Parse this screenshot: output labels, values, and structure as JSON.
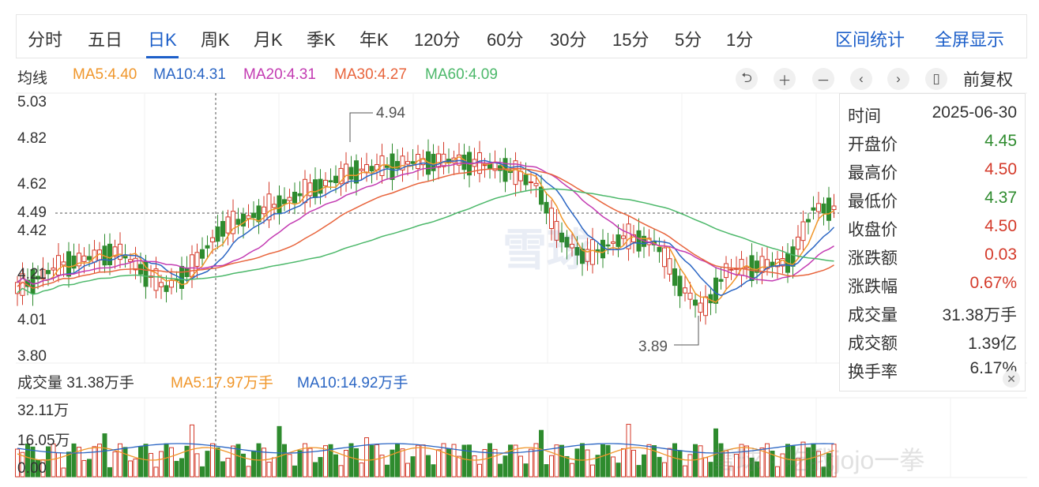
{
  "tabs": {
    "items": [
      "分时",
      "五日",
      "日K",
      "周K",
      "月K",
      "季K",
      "年K",
      "120分",
      "60分",
      "30分",
      "15分",
      "5分",
      "1分"
    ],
    "active": "日K",
    "right": [
      "区间统计",
      "全屏显示"
    ]
  },
  "ma_legend": {
    "label": "均线",
    "ma5": "MA5:4.40",
    "ma10": "MA10:4.31",
    "ma20": "MA20:4.31",
    "ma30": "MA30:4.27",
    "ma60": "MA60:4.09"
  },
  "controls": {
    "fuquan": "前复权"
  },
  "price_axis": [
    "5.03",
    "4.82",
    "4.62",
    "4.42",
    "4.21",
    "4.01",
    "3.80"
  ],
  "crosshair_price": "4.49",
  "annotations": {
    "high": "4.94",
    "low": "3.89"
  },
  "info_panel": {
    "rows": [
      {
        "k": "时间",
        "v": "2025-06-30",
        "c": "#333333"
      },
      {
        "k": "开盘价",
        "v": "4.45",
        "c": "#2e8b2e"
      },
      {
        "k": "最高价",
        "v": "4.50",
        "c": "#d43a2a"
      },
      {
        "k": "最低价",
        "v": "4.37",
        "c": "#2e8b2e"
      },
      {
        "k": "收盘价",
        "v": "4.50",
        "c": "#d43a2a"
      },
      {
        "k": "涨跌额",
        "v": "0.03",
        "c": "#d43a2a"
      },
      {
        "k": "涨跌幅",
        "v": "0.67%",
        "c": "#d43a2a"
      },
      {
        "k": "成交量",
        "v": "31.38万手",
        "c": "#333333"
      },
      {
        "k": "成交额",
        "v": "1.39亿",
        "c": "#333333"
      },
      {
        "k": "换手率",
        "v": "6.17%",
        "c": "#333333"
      }
    ]
  },
  "volume": {
    "title": "成交量 31.38万手",
    "ma5": "MA5:17.97万手",
    "ma10": "MA10:14.92万手",
    "axis": [
      "32.11万",
      "16.05万",
      "0.00"
    ]
  },
  "watermark": {
    "logo": "雪球",
    "user": "雪球 · 吃我jojo一拳"
  },
  "colors": {
    "up": "#d43a2a",
    "down": "#2e8b2e",
    "ma5": "#f0962a",
    "ma10": "#2b66c4",
    "ma20": "#c33bb2",
    "ma30": "#e8643c",
    "ma60": "#4cb86a",
    "accent": "#1d5fc9"
  }
}
